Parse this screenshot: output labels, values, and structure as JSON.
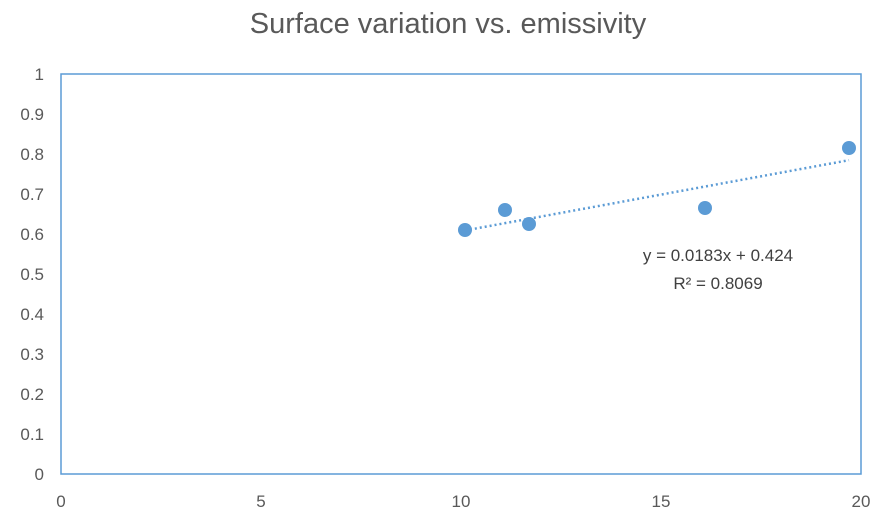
{
  "chart_data": {
    "type": "scatter",
    "title": "Surface variation vs. emissivity",
    "xlabel": "",
    "ylabel": "",
    "xlim": [
      0,
      20
    ],
    "ylim": [
      0,
      1
    ],
    "x_ticks": [
      "0",
      "5",
      "10",
      "15",
      "20"
    ],
    "y_ticks": [
      "0",
      "0.1",
      "0.2",
      "0.3",
      "0.4",
      "0.5",
      "0.6",
      "0.7",
      "0.8",
      "0.9",
      "1"
    ],
    "grid": false,
    "legend": "none",
    "series": [
      {
        "points": [
          {
            "x": 10.1,
            "y": 0.61
          },
          {
            "x": 11.1,
            "y": 0.66
          },
          {
            "x": 11.7,
            "y": 0.625
          },
          {
            "x": 16.1,
            "y": 0.665
          },
          {
            "x": 19.7,
            "y": 0.815
          }
        ],
        "color": "#5b9bd5"
      }
    ],
    "trendline": {
      "type": "linear",
      "slope": 0.0183,
      "intercept": 0.424,
      "x_range": [
        10.1,
        19.7
      ],
      "color": "#5b9bd5",
      "style": "dotted"
    },
    "annotations": {
      "equation": "y = 0.0183x + 0.424",
      "r_squared": "R² = 0.8069"
    },
    "plot_area_border_color": "#5b9bd5"
  }
}
